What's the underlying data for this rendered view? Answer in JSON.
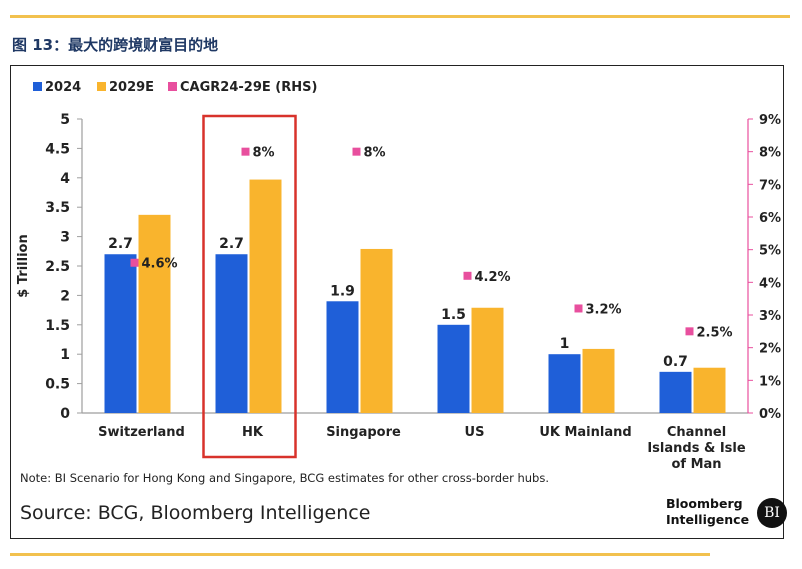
{
  "figure_title": "图 13：最大的跨境财富目的地",
  "note": "Note: BI Scenario for Hong Kong and Singapore, BCG estimates for other cross-border hubs.",
  "source": "Source: BCG, Bloomberg Intelligence",
  "brand": {
    "line1": "Bloomberg",
    "line2": "Intelligence",
    "badge": "BI"
  },
  "colors": {
    "s2024": "#1f5fd8",
    "s2029": "#f9b42d",
    "cagr": "#e84f9e",
    "highlight": "#d8322b",
    "rule": "#f2c14e"
  },
  "chart_data": {
    "type": "bar",
    "categories": [
      "Switzerland",
      "HK",
      "Singapore",
      "US",
      "UK Mainland",
      "Channel Islands & Isle of Man"
    ],
    "category_lines": [
      [
        "Switzerland"
      ],
      [
        "HK"
      ],
      [
        "Singapore"
      ],
      [
        "US"
      ],
      [
        "UK Mainland"
      ],
      [
        "Channel",
        "Islands & Isle",
        "of Man"
      ]
    ],
    "series": [
      {
        "name": "2024",
        "values": [
          2.7,
          2.7,
          1.9,
          1.5,
          1.0,
          0.7
        ],
        "labels": [
          "2.7",
          "2.7",
          "1.9",
          "1.5",
          "1",
          "0.7"
        ]
      },
      {
        "name": "2029E",
        "values": [
          3.37,
          3.97,
          2.79,
          1.79,
          1.09,
          0.77
        ]
      },
      {
        "name": "CAGR24-29E (RHS)",
        "values": [
          4.6,
          8,
          8,
          4.2,
          3.2,
          2.5
        ],
        "labels": [
          "4.6%",
          "8%",
          "8%",
          "4.2%",
          "3.2%",
          "2.5%"
        ],
        "axis": "right"
      }
    ],
    "ylabel": "$ Trillion",
    "ylim": [
      0,
      5
    ],
    "yticks": [
      "0",
      "0.5",
      "1",
      "1.5",
      "2",
      "2.5",
      "3",
      "3.5",
      "4",
      "4.5",
      "5"
    ],
    "y2lim": [
      0,
      9
    ],
    "y2ticks": [
      "0%",
      "1%",
      "2%",
      "3%",
      "4%",
      "5%",
      "6%",
      "7%",
      "8%",
      "9%"
    ],
    "highlighted_category": "HK",
    "legend_position": "top-left"
  }
}
